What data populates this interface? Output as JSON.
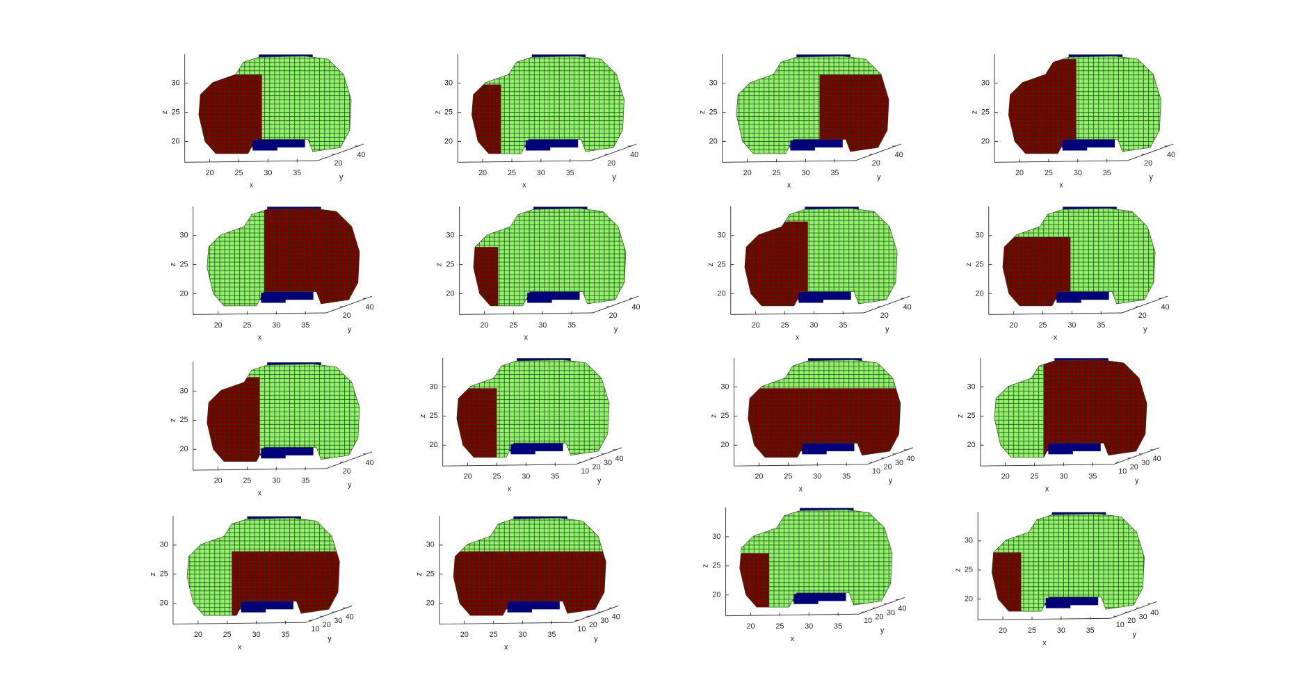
{
  "chart_data": [
    {
      "type": "voxel",
      "xlabel": "x",
      "ylabel": "y",
      "zlabel": "z",
      "xlim": [
        16,
        38
      ],
      "ylim": [
        5,
        45
      ],
      "zlim": [
        17,
        34
      ],
      "xticks": [
        20,
        25,
        30,
        35
      ],
      "yticks": [
        20,
        40
      ],
      "zticks": [
        20,
        25,
        30
      ],
      "colors": [
        "#8ff26a",
        "#7a0000",
        "#00007a"
      ]
    },
    {
      "type": "voxel",
      "xlabel": "x",
      "ylabel": "y",
      "zlabel": "z",
      "xlim": [
        16,
        38
      ],
      "ylim": [
        5,
        45
      ],
      "zlim": [
        17,
        34
      ],
      "xticks": [
        20,
        25,
        30,
        35
      ],
      "yticks": [
        20,
        40
      ],
      "zticks": [
        20,
        25,
        30
      ],
      "colors": [
        "#8ff26a",
        "#7a0000",
        "#00007a"
      ]
    },
    {
      "type": "voxel",
      "xlabel": "x",
      "ylabel": "y",
      "zlabel": "z",
      "xlim": [
        16,
        38
      ],
      "ylim": [
        5,
        45
      ],
      "zlim": [
        17,
        34
      ],
      "xticks": [
        20,
        25,
        30,
        35
      ],
      "yticks": [
        20,
        40
      ],
      "zticks": [
        20,
        25,
        30
      ],
      "colors": [
        "#8ff26a",
        "#7a0000",
        "#00007a"
      ]
    },
    {
      "type": "voxel",
      "xlabel": "x",
      "ylabel": "y",
      "zlabel": "z",
      "xlim": [
        16,
        38
      ],
      "ylim": [
        5,
        45
      ],
      "zlim": [
        17,
        34
      ],
      "xticks": [
        20,
        25,
        30,
        35
      ],
      "yticks": [
        20,
        40
      ],
      "zticks": [
        20,
        25,
        30
      ],
      "colors": [
        "#8ff26a",
        "#7a0000",
        "#00007a"
      ]
    },
    {
      "type": "voxel",
      "xlabel": "x",
      "ylabel": "y",
      "zlabel": "z",
      "xlim": [
        16,
        38
      ],
      "ylim": [
        5,
        45
      ],
      "zlim": [
        17,
        34
      ],
      "xticks": [
        20,
        25,
        30,
        35
      ],
      "yticks": [
        20,
        40
      ],
      "zticks": [
        20,
        25,
        30
      ],
      "colors": [
        "#8ff26a",
        "#7a0000",
        "#00007a"
      ]
    },
    {
      "type": "voxel",
      "xlabel": "x",
      "ylabel": "y",
      "zlabel": "z",
      "xlim": [
        16,
        38
      ],
      "ylim": [
        5,
        45
      ],
      "zlim": [
        17,
        34
      ],
      "xticks": [
        20,
        25,
        30,
        35
      ],
      "yticks": [
        20,
        40
      ],
      "zticks": [
        20,
        25,
        30
      ],
      "colors": [
        "#8ff26a",
        "#7a0000",
        "#00007a"
      ]
    },
    {
      "type": "voxel",
      "xlabel": "x",
      "ylabel": "y",
      "zlabel": "z",
      "xlim": [
        16,
        38
      ],
      "ylim": [
        5,
        45
      ],
      "zlim": [
        17,
        34
      ],
      "xticks": [
        20,
        25,
        30,
        35
      ],
      "yticks": [
        20,
        40
      ],
      "zticks": [
        20,
        25,
        30
      ],
      "colors": [
        "#8ff26a",
        "#7a0000",
        "#00007a"
      ]
    },
    {
      "type": "voxel",
      "xlabel": "x",
      "ylabel": "y",
      "zlabel": "z",
      "xlim": [
        16,
        38
      ],
      "ylim": [
        5,
        45
      ],
      "zlim": [
        17,
        34
      ],
      "xticks": [
        20,
        25,
        30,
        35
      ],
      "yticks": [
        20,
        40
      ],
      "zticks": [
        20,
        25,
        30
      ],
      "colors": [
        "#8ff26a",
        "#7a0000",
        "#00007a"
      ]
    },
    {
      "type": "voxel",
      "xlabel": "x",
      "ylabel": "y",
      "zlabel": "z",
      "xlim": [
        16,
        38
      ],
      "ylim": [
        5,
        45
      ],
      "zlim": [
        17,
        34
      ],
      "xticks": [
        20,
        25,
        30,
        35
      ],
      "yticks": [
        20,
        40
      ],
      "zticks": [
        20,
        25,
        30
      ],
      "colors": [
        "#8ff26a",
        "#7a0000",
        "#00007a"
      ]
    },
    {
      "type": "voxel",
      "xlabel": "x",
      "ylabel": "y",
      "zlabel": "z",
      "xlim": [
        16,
        38
      ],
      "ylim": [
        5,
        45
      ],
      "zlim": [
        17,
        34
      ],
      "xticks": [
        20,
        25,
        30,
        35
      ],
      "yticks": [
        10,
        20,
        30,
        40
      ],
      "zticks": [
        20,
        25,
        30
      ],
      "colors": [
        "#8ff26a",
        "#7a0000",
        "#00007a"
      ]
    },
    {
      "type": "voxel",
      "xlabel": "x",
      "ylabel": "y",
      "zlabel": "z",
      "xlim": [
        16,
        38
      ],
      "ylim": [
        5,
        45
      ],
      "zlim": [
        17,
        34
      ],
      "xticks": [
        20,
        25,
        30,
        35
      ],
      "yticks": [
        10,
        20,
        30,
        40
      ],
      "zticks": [
        20,
        25,
        30
      ],
      "colors": [
        "#8ff26a",
        "#7a0000",
        "#00007a"
      ]
    },
    {
      "type": "voxel",
      "xlabel": "x",
      "ylabel": "y",
      "zlabel": "z",
      "xlim": [
        16,
        38
      ],
      "ylim": [
        5,
        45
      ],
      "zlim": [
        17,
        34
      ],
      "xticks": [
        20,
        25,
        30,
        35
      ],
      "yticks": [
        10,
        20,
        30,
        40
      ],
      "zticks": [
        20,
        25,
        30
      ],
      "colors": [
        "#8ff26a",
        "#7a0000",
        "#00007a"
      ]
    },
    {
      "type": "voxel",
      "xlabel": "x",
      "ylabel": "y",
      "zlabel": "z",
      "xlim": [
        16,
        38
      ],
      "ylim": [
        5,
        45
      ],
      "zlim": [
        17,
        34
      ],
      "xticks": [
        20,
        25,
        30,
        35
      ],
      "yticks": [
        10,
        20,
        30,
        40
      ],
      "zticks": [
        20,
        25,
        30
      ],
      "colors": [
        "#8ff26a",
        "#7a0000",
        "#00007a"
      ]
    },
    {
      "type": "voxel",
      "xlabel": "x",
      "ylabel": "y",
      "zlabel": "z",
      "xlim": [
        16,
        38
      ],
      "ylim": [
        5,
        45
      ],
      "zlim": [
        17,
        34
      ],
      "xticks": [
        20,
        25,
        30,
        35
      ],
      "yticks": [
        10,
        20,
        30,
        40
      ],
      "zticks": [
        20,
        25,
        30
      ],
      "colors": [
        "#8ff26a",
        "#7a0000",
        "#00007a"
      ]
    },
    {
      "type": "voxel",
      "xlabel": "x",
      "ylabel": "y",
      "zlabel": "z",
      "xlim": [
        16,
        38
      ],
      "ylim": [
        5,
        45
      ],
      "zlim": [
        17,
        34
      ],
      "xticks": [
        20,
        25,
        30,
        35
      ],
      "yticks": [
        10,
        20,
        30,
        40
      ],
      "zticks": [
        20,
        25,
        30
      ],
      "colors": [
        "#8ff26a",
        "#7a0000",
        "#00007a"
      ]
    },
    {
      "type": "voxel",
      "xlabel": "x",
      "ylabel": "y",
      "zlabel": "z",
      "xlim": [
        16,
        38
      ],
      "ylim": [
        5,
        45
      ],
      "zlim": [
        17,
        34
      ],
      "xticks": [
        20,
        25,
        30,
        35
      ],
      "yticks": [
        10,
        20,
        30,
        40
      ],
      "zticks": [
        20,
        25,
        30
      ],
      "colors": [
        "#8ff26a",
        "#7a0000",
        "#00007a"
      ]
    }
  ]
}
